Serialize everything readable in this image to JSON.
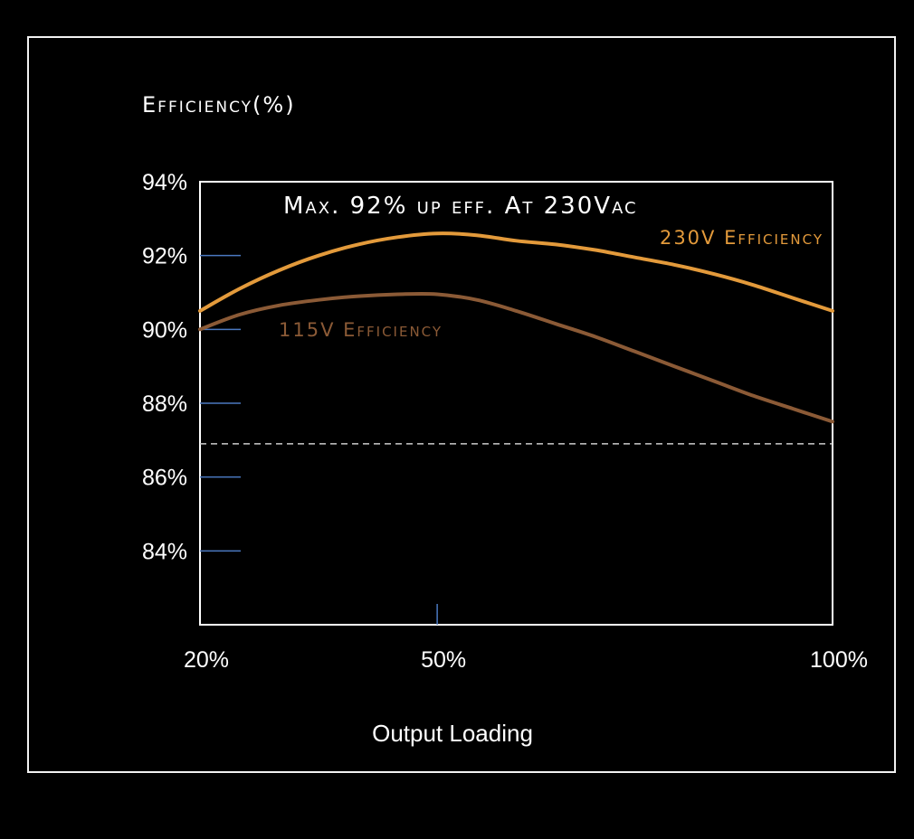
{
  "chart_data": {
    "type": "line",
    "title": "Efficiency(%)",
    "annotation": "Max. 92% up eff. At 230Vac",
    "xlabel": "Output Loading",
    "ylabel": "Efficiency(%)",
    "x_ticks": [
      "20%",
      "50%",
      "100%"
    ],
    "y_ticks": [
      "94%",
      "92%",
      "90%",
      "88%",
      "86%",
      "84%"
    ],
    "xlim": [
      20,
      100
    ],
    "ylim": [
      82,
      94
    ],
    "grid": false,
    "reference_line": {
      "y": 86.9,
      "style": "dashed",
      "color": "#cccccc"
    },
    "series": [
      {
        "name": "230V Efficiency",
        "color": "#e39a3b",
        "x": [
          20,
          25,
          30,
          35,
          40,
          45,
          50,
          55,
          60,
          65,
          70,
          75,
          80,
          85,
          90,
          95,
          100
        ],
        "y": [
          90.5,
          91.1,
          91.6,
          92.0,
          92.3,
          92.5,
          92.6,
          92.55,
          92.4,
          92.3,
          92.15,
          91.95,
          91.75,
          91.5,
          91.2,
          90.85,
          90.5
        ]
      },
      {
        "name": "115V Efficiency",
        "color": "#8b5a36",
        "x": [
          20,
          25,
          30,
          35,
          40,
          45,
          50,
          55,
          60,
          65,
          70,
          75,
          80,
          85,
          90,
          95,
          100
        ],
        "y": [
          90.0,
          90.4,
          90.65,
          90.8,
          90.9,
          90.95,
          90.95,
          90.8,
          90.5,
          90.15,
          89.8,
          89.4,
          89.0,
          88.6,
          88.2,
          87.85,
          87.5
        ]
      }
    ]
  },
  "colors": {
    "background": "#000000",
    "frame": "#f2f2f2",
    "tick_marks": "#4a78c0",
    "annotation": "#ffffff"
  }
}
